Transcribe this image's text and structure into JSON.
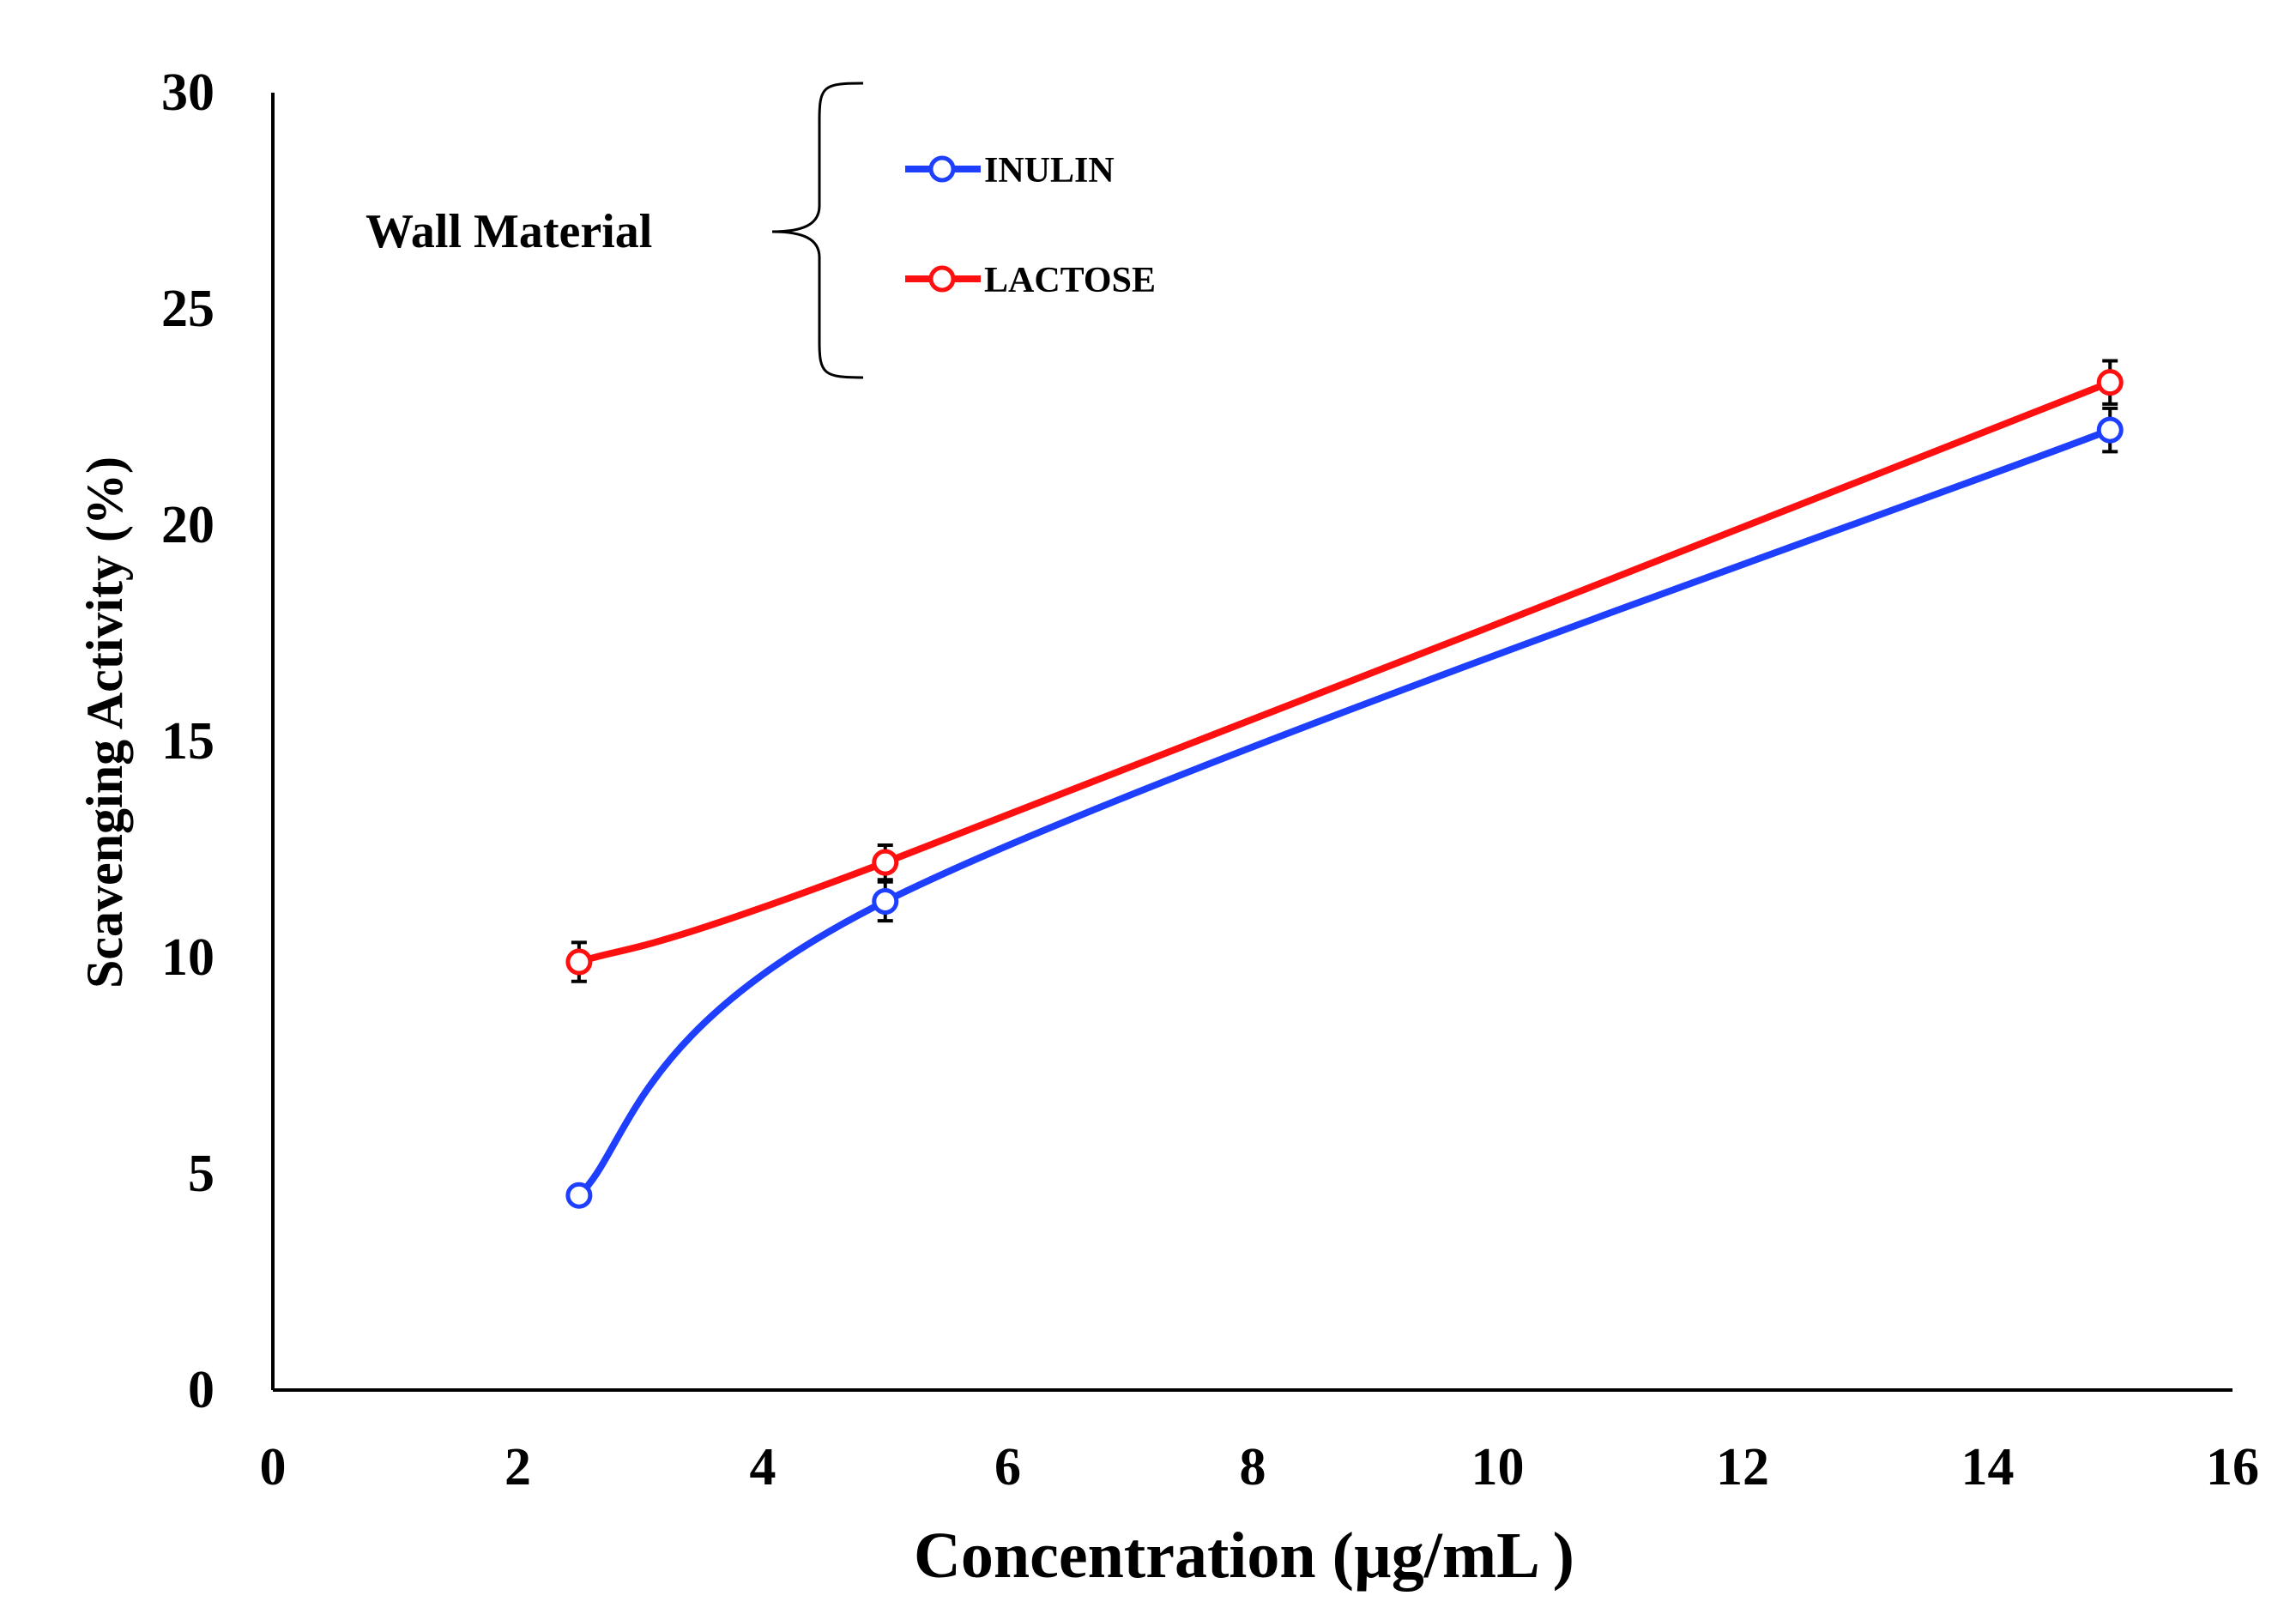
{
  "chart_data": {
    "type": "line",
    "title": "",
    "xlabel": "Concentration (µg/mL )",
    "ylabel": "Scavenging Activity (%)",
    "xlim": [
      0,
      16
    ],
    "ylim": [
      0,
      30
    ],
    "x_ticks": [
      0,
      2,
      4,
      6,
      8,
      10,
      12,
      14,
      16
    ],
    "y_ticks": [
      0,
      5,
      10,
      15,
      20,
      25,
      30
    ],
    "grid": false,
    "legend": {
      "title": "Wall Material",
      "placement": "top-left"
    },
    "series": [
      {
        "name": "INULIN",
        "color": "#1f3fff",
        "x": [
          2.5,
          5,
          15
        ],
        "values": [
          4.5,
          11.3,
          22.2
        ],
        "errors": [
          0.15,
          0.45,
          0.5
        ]
      },
      {
        "name": "LACTOSE",
        "color": "#ff1010",
        "x": [
          2.5,
          5,
          15
        ],
        "values": [
          9.9,
          12.2,
          23.3
        ],
        "errors": [
          0.45,
          0.4,
          0.5
        ]
      }
    ]
  }
}
